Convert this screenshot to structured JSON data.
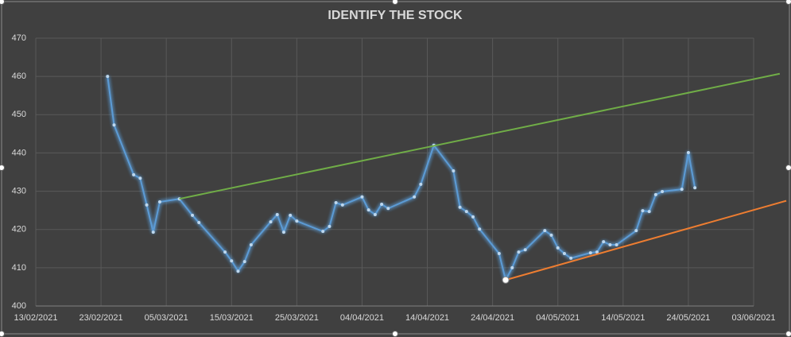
{
  "chart_data": {
    "type": "line",
    "title": "IDENTIFY THE STOCK",
    "xlim": [
      "2021-02-13",
      "2021-06-03"
    ],
    "xticks": [
      {
        "value": "2021-02-13",
        "label": "13/02/2021"
      },
      {
        "value": "2021-02-23",
        "label": "23/02/2021"
      },
      {
        "value": "2021-03-05",
        "label": "05/03/2021"
      },
      {
        "value": "2021-03-15",
        "label": "15/03/2021"
      },
      {
        "value": "2021-03-25",
        "label": "25/03/2021"
      },
      {
        "value": "2021-04-04",
        "label": "04/04/2021"
      },
      {
        "value": "2021-04-14",
        "label": "14/04/2021"
      },
      {
        "value": "2021-04-24",
        "label": "24/04/2021"
      },
      {
        "value": "2021-05-04",
        "label": "04/05/2021"
      },
      {
        "value": "2021-05-14",
        "label": "14/05/2021"
      },
      {
        "value": "2021-05-24",
        "label": "24/05/2021"
      },
      {
        "value": "2021-06-03",
        "label": "03/06/2021"
      }
    ],
    "ylim": [
      400,
      470
    ],
    "yticks": [
      400,
      410,
      420,
      430,
      440,
      450,
      460,
      470
    ],
    "grid": true,
    "series": [
      {
        "color": "#5b9bd5",
        "markers": true,
        "x": [
          "2021-02-24",
          "2021-02-25",
          "2021-02-28",
          "2021-03-01",
          "2021-03-02",
          "2021-03-03",
          "2021-03-04",
          "2021-03-07",
          "2021-03-09",
          "2021-03-10",
          "2021-03-14",
          "2021-03-15",
          "2021-03-16",
          "2021-03-17",
          "2021-03-18",
          "2021-03-21",
          "2021-03-22",
          "2021-03-23",
          "2021-03-24",
          "2021-03-25",
          "2021-03-29",
          "2021-03-30",
          "2021-03-31",
          "2021-04-01",
          "2021-04-04",
          "2021-04-05",
          "2021-04-06",
          "2021-04-07",
          "2021-04-08",
          "2021-04-12",
          "2021-04-13",
          "2021-04-15",
          "2021-04-18",
          "2021-04-19",
          "2021-04-20",
          "2021-04-21",
          "2021-04-22",
          "2021-04-25",
          "2021-04-26",
          "2021-04-27",
          "2021-04-28",
          "2021-04-29",
          "2021-05-02",
          "2021-05-03",
          "2021-05-04",
          "2021-05-05",
          "2021-05-06",
          "2021-05-09",
          "2021-05-10",
          "2021-05-11",
          "2021-05-12",
          "2021-05-13",
          "2021-05-16",
          "2021-05-17",
          "2021-05-18",
          "2021-05-19",
          "2021-05-20",
          "2021-05-23",
          "2021-05-24",
          "2021-05-25"
        ],
        "values": [
          460.0,
          447.3,
          434.3,
          433.4,
          426.4,
          419.3,
          427.2,
          428.0,
          423.7,
          421.8,
          414.1,
          411.8,
          409.1,
          411.6,
          416.0,
          422.0,
          423.9,
          419.3,
          423.7,
          422.2,
          419.5,
          420.8,
          427.0,
          426.4,
          428.5,
          425.1,
          423.9,
          426.6,
          425.5,
          428.5,
          431.8,
          442.0,
          435.3,
          425.8,
          424.7,
          423.3,
          420.1,
          413.7,
          406.8,
          410.0,
          414.1,
          414.7,
          419.7,
          418.5,
          415.2,
          413.7,
          412.5,
          413.9,
          414.1,
          416.8,
          416.0,
          416.0,
          419.7,
          424.9,
          424.7,
          429.1,
          429.9,
          430.5,
          440.1,
          430.9
        ]
      },
      {
        "color": "#70ad47",
        "markers": false,
        "x": [
          "2021-03-07",
          "2021-06-07"
        ],
        "values": [
          428.0,
          460.7
        ]
      },
      {
        "color": "#ed7d31",
        "markers": false,
        "x": [
          "2021-04-26",
          "2021-06-08"
        ],
        "values": [
          406.8,
          427.5
        ]
      }
    ]
  }
}
